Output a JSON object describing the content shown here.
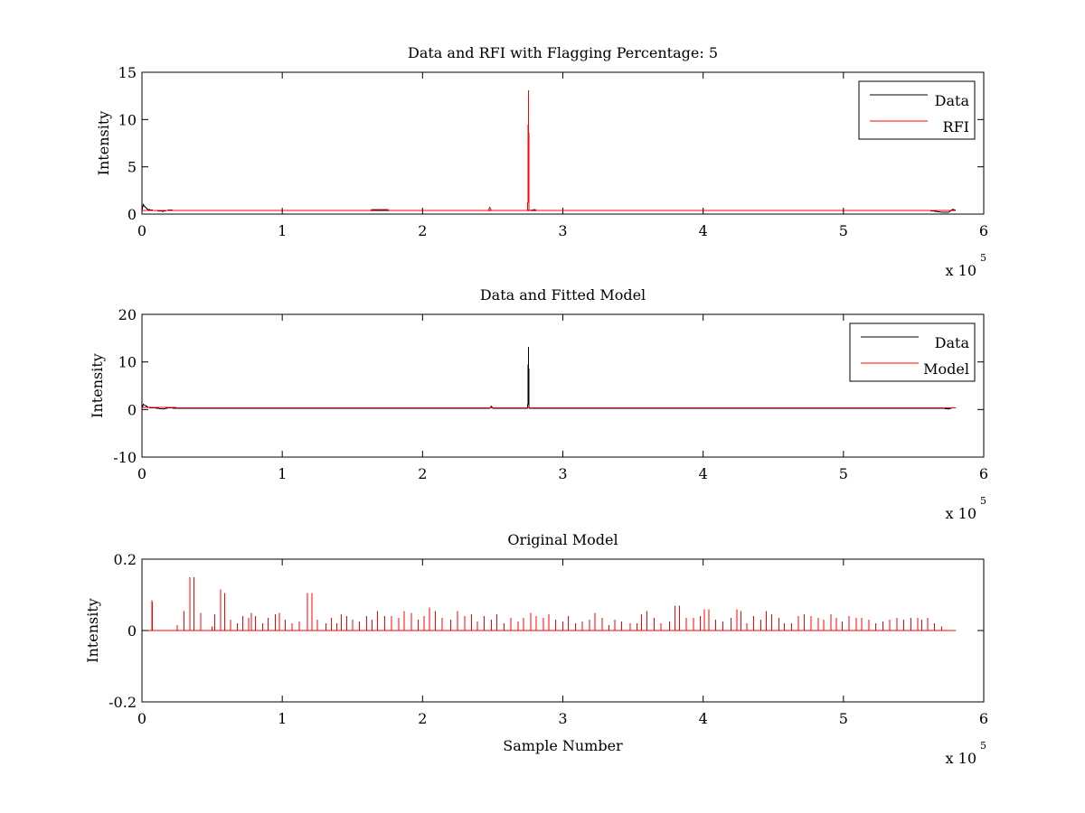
{
  "figure": {
    "background": "#ffffff",
    "colors": {
      "data": "#000000",
      "rfi": "#ff0000",
      "model": "#ff0000",
      "axes": "#000000"
    }
  },
  "chart_data": [
    {
      "type": "line",
      "title": "Data and RFI with Flagging Percentage: 5",
      "xlabel": "",
      "ylabel": "Intensity",
      "xlim": [
        0,
        6
      ],
      "ylim": [
        0,
        15
      ],
      "x_multiplier_base": "x 10",
      "x_multiplier_exponent": "5",
      "xticks": [
        "0",
        "1",
        "2",
        "3",
        "4",
        "5",
        "6"
      ],
      "yticks": [
        "0",
        "5",
        "10",
        "15"
      ],
      "legend": {
        "position": "top-right",
        "entries": [
          {
            "name": "Data",
            "color": "#000000"
          },
          {
            "name": "RFI",
            "color": "#ff0000"
          }
        ]
      },
      "series": [
        {
          "name": "Data",
          "color": "#000000",
          "x": [
            0,
            0.01,
            0.02,
            0.04,
            0.08,
            0.15,
            0.2,
            0.22,
            0.3,
            1.0,
            2.0,
            3.0,
            4.0,
            5.0,
            5.6,
            5.7,
            5.75,
            5.78,
            5.8
          ],
          "y": [
            0.4,
            1.0,
            0.8,
            0.5,
            0.4,
            0.3,
            0.45,
            0.4,
            0.4,
            0.4,
            0.4,
            0.4,
            0.4,
            0.4,
            0.4,
            0.2,
            0.2,
            0.5,
            0.4
          ]
        },
        {
          "name": "RFI",
          "color": "#ff0000",
          "x": [
            0,
            1.63,
            1.64,
            1.75,
            1.76,
            2.47,
            2.48,
            2.49,
            2.74,
            2.75,
            2.755,
            2.76,
            2.77,
            2.8,
            2.81,
            5.8
          ],
          "y": [
            0.4,
            0.4,
            0.5,
            0.5,
            0.4,
            0.4,
            0.7,
            0.4,
            0.4,
            0.4,
            13.1,
            0.4,
            0.4,
            0.5,
            0.4,
            0.4
          ]
        }
      ]
    },
    {
      "type": "line",
      "title": "Data and Fitted Model",
      "xlabel": "",
      "ylabel": "Intensity",
      "xlim": [
        0,
        6
      ],
      "ylim": [
        -10,
        20
      ],
      "x_multiplier_base": "x 10",
      "x_multiplier_exponent": "5",
      "xticks": [
        "0",
        "1",
        "2",
        "3",
        "4",
        "5",
        "6"
      ],
      "yticks": [
        "-10",
        "0",
        "10",
        "20"
      ],
      "legend": {
        "position": "top-right",
        "entries": [
          {
            "name": "Data",
            "color": "#000000"
          },
          {
            "name": "Model",
            "color": "#ff0000"
          }
        ]
      },
      "series": [
        {
          "name": "Data",
          "color": "#000000",
          "x": [
            0,
            0.01,
            0.02,
            0.05,
            0.1,
            0.15,
            0.2,
            0.22,
            0.3,
            2.48,
            2.49,
            2.5,
            2.74,
            2.75,
            2.755,
            2.76,
            2.77,
            5.7,
            5.75,
            5.78,
            5.8
          ],
          "y": [
            0.3,
            1.1,
            0.9,
            0.4,
            0.3,
            0.1,
            0.4,
            0.3,
            0.3,
            0.3,
            0.7,
            0.3,
            0.3,
            0.3,
            13.2,
            0.3,
            0.3,
            0.3,
            0.1,
            0.4,
            0.3
          ]
        },
        {
          "name": "Model",
          "color": "#ff0000",
          "x": [
            0,
            0.03,
            0.06,
            0.2,
            0.22,
            0.24,
            0.3,
            5.8
          ],
          "y": [
            0.4,
            0.5,
            0.4,
            0.4,
            0.45,
            0.4,
            0.35,
            0.35
          ]
        }
      ]
    },
    {
      "type": "line",
      "title": "Original Model",
      "xlabel": "Sample Number",
      "ylabel": "Intensity",
      "xlim": [
        0,
        6
      ],
      "ylim": [
        -0.2,
        0.2
      ],
      "x_multiplier_base": "x 10",
      "x_multiplier_exponent": "5",
      "xticks": [
        "0",
        "1",
        "2",
        "3",
        "4",
        "5",
        "6"
      ],
      "yticks": [
        "-0.2",
        "0",
        "0.2"
      ],
      "legend": null,
      "series": [
        {
          "name": "Original Model",
          "color": "#ff0000",
          "baseline": 0,
          "x_end": 5.8,
          "spikes": [
            [
              0.07,
              0.085
            ],
            [
              0.075,
              0.08
            ],
            [
              0.25,
              0.015
            ],
            [
              0.3,
              0.055
            ],
            [
              0.34,
              0.15
            ],
            [
              0.37,
              0.15
            ],
            [
              0.42,
              0.05
            ],
            [
              0.5,
              0.012
            ],
            [
              0.52,
              0.045
            ],
            [
              0.56,
              0.115
            ],
            [
              0.59,
              0.105
            ],
            [
              0.63,
              0.03
            ],
            [
              0.68,
              0.02
            ],
            [
              0.72,
              0.04
            ],
            [
              0.76,
              0.035
            ],
            [
              0.78,
              0.05
            ],
            [
              0.81,
              0.04
            ],
            [
              0.86,
              0.02
            ],
            [
              0.9,
              0.035
            ],
            [
              0.95,
              0.045
            ],
            [
              0.98,
              0.05
            ],
            [
              1.02,
              0.03
            ],
            [
              1.07,
              0.02
            ],
            [
              1.12,
              0.025
            ],
            [
              1.18,
              0.105
            ],
            [
              1.21,
              0.105
            ],
            [
              1.25,
              0.03
            ],
            [
              1.31,
              0.02
            ],
            [
              1.35,
              0.035
            ],
            [
              1.39,
              0.02
            ],
            [
              1.42,
              0.045
            ],
            [
              1.46,
              0.04
            ],
            [
              1.5,
              0.03
            ],
            [
              1.55,
              0.025
            ],
            [
              1.6,
              0.04
            ],
            [
              1.64,
              0.03
            ],
            [
              1.68,
              0.055
            ],
            [
              1.73,
              0.04
            ],
            [
              1.78,
              0.04
            ],
            [
              1.83,
              0.035
            ],
            [
              1.87,
              0.055
            ],
            [
              1.92,
              0.05
            ],
            [
              1.97,
              0.03
            ],
            [
              2.01,
              0.04
            ],
            [
              2.05,
              0.065
            ],
            [
              2.09,
              0.055
            ],
            [
              2.14,
              0.035
            ],
            [
              2.2,
              0.03
            ],
            [
              2.25,
              0.055
            ],
            [
              2.3,
              0.04
            ],
            [
              2.35,
              0.045
            ],
            [
              2.39,
              0.025
            ],
            [
              2.44,
              0.04
            ],
            [
              2.49,
              0.03
            ],
            [
              2.53,
              0.045
            ],
            [
              2.58,
              0.02
            ],
            [
              2.63,
              0.035
            ],
            [
              2.68,
              0.025
            ],
            [
              2.72,
              0.035
            ],
            [
              2.77,
              0.05
            ],
            [
              2.81,
              0.04
            ],
            [
              2.86,
              0.035
            ],
            [
              2.9,
              0.045
            ],
            [
              2.95,
              0.03
            ],
            [
              3.0,
              0.025
            ],
            [
              3.04,
              0.04
            ],
            [
              3.09,
              0.02
            ],
            [
              3.14,
              0.025
            ],
            [
              3.19,
              0.03
            ],
            [
              3.23,
              0.05
            ],
            [
              3.28,
              0.035
            ],
            [
              3.33,
              0.015
            ],
            [
              3.37,
              0.03
            ],
            [
              3.42,
              0.025
            ],
            [
              3.48,
              0.02
            ],
            [
              3.53,
              0.02
            ],
            [
              3.56,
              0.045
            ],
            [
              3.6,
              0.055
            ],
            [
              3.65,
              0.035
            ],
            [
              3.7,
              0.02
            ],
            [
              3.76,
              0.025
            ],
            [
              3.8,
              0.07
            ],
            [
              3.83,
              0.07
            ],
            [
              3.88,
              0.035
            ],
            [
              3.93,
              0.035
            ],
            [
              3.98,
              0.04
            ],
            [
              4.01,
              0.06
            ],
            [
              4.04,
              0.06
            ],
            [
              4.09,
              0.03
            ],
            [
              4.14,
              0.025
            ],
            [
              4.2,
              0.035
            ],
            [
              4.24,
              0.06
            ],
            [
              4.27,
              0.055
            ],
            [
              4.31,
              0.02
            ],
            [
              4.36,
              0.04
            ],
            [
              4.41,
              0.03
            ],
            [
              4.45,
              0.055
            ],
            [
              4.49,
              0.045
            ],
            [
              4.54,
              0.035
            ],
            [
              4.58,
              0.02
            ],
            [
              4.63,
              0.02
            ],
            [
              4.68,
              0.04
            ],
            [
              4.72,
              0.045
            ],
            [
              4.77,
              0.04
            ],
            [
              4.82,
              0.035
            ],
            [
              4.86,
              0.03
            ],
            [
              4.91,
              0.045
            ],
            [
              4.95,
              0.035
            ],
            [
              4.99,
              0.025
            ],
            [
              5.04,
              0.04
            ],
            [
              5.09,
              0.035
            ],
            [
              5.13,
              0.035
            ],
            [
              5.18,
              0.03
            ],
            [
              5.23,
              0.02
            ],
            [
              5.28,
              0.025
            ],
            [
              5.33,
              0.03
            ],
            [
              5.38,
              0.035
            ],
            [
              5.43,
              0.03
            ],
            [
              5.48,
              0.035
            ],
            [
              5.53,
              0.035
            ],
            [
              5.56,
              0.03
            ],
            [
              5.6,
              0.035
            ],
            [
              5.65,
              0.02
            ],
            [
              5.7,
              0.012
            ]
          ]
        }
      ]
    }
  ]
}
